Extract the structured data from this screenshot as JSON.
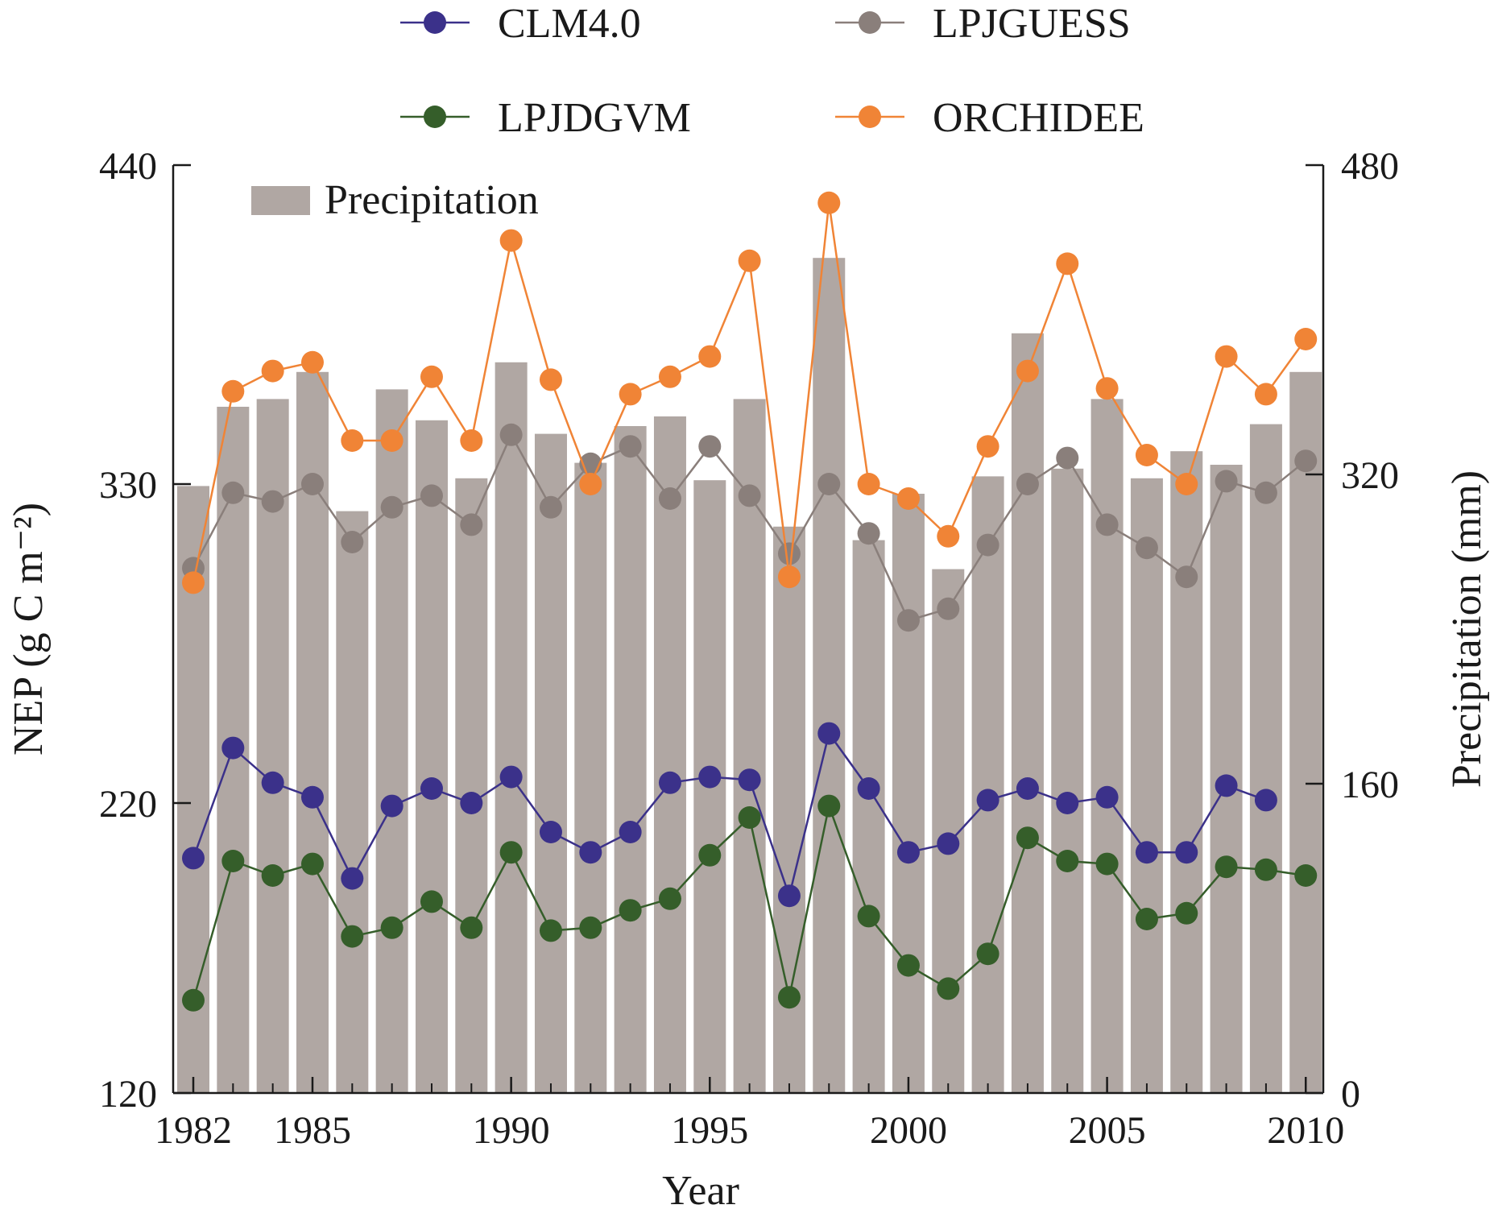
{
  "chart_data": {
    "type": "bar+line",
    "x_label": "Year",
    "y_left_label": "NEP (g C m⁻²)",
    "y_right_label": "Precipitation (mm)",
    "y_left_range": [
      120,
      440
    ],
    "y_right_range": [
      0,
      480
    ],
    "y_left_ticks": [
      120,
      220,
      330,
      440
    ],
    "y_right_ticks": [
      0,
      160,
      320,
      480
    ],
    "x_ticks": [
      1982,
      1985,
      1990,
      1995,
      2000,
      2005,
      2010
    ],
    "years": [
      1982,
      1983,
      1984,
      1985,
      1986,
      1987,
      1988,
      1989,
      1990,
      1991,
      1992,
      1993,
      1994,
      1995,
      1996,
      1997,
      1998,
      1999,
      2000,
      2001,
      2002,
      2003,
      2004,
      2005,
      2006,
      2007,
      2008,
      2009,
      2010
    ],
    "bars": {
      "name": "Precipitation",
      "axis": "right",
      "color": "#b0a7a3",
      "values": [
        314,
        355,
        359,
        373,
        301,
        364,
        348,
        318,
        378,
        341,
        326,
        345,
        350,
        317,
        359,
        293,
        432,
        286,
        310,
        271,
        319,
        393,
        323,
        359,
        318,
        332,
        325,
        346,
        373
      ]
    },
    "series": [
      {
        "name": "CLM4.0",
        "color": "#3b318a",
        "values": [
          201,
          239,
          227,
          222,
          194,
          219,
          225,
          220,
          229,
          210,
          203,
          210,
          227,
          229,
          228,
          188,
          244,
          225,
          203,
          206,
          221,
          225,
          220,
          222,
          203,
          203,
          226,
          221,
          null
        ]
      },
      {
        "name": "LPJGUESS",
        "color": "#8a7f7b",
        "values": [
          301,
          327,
          324,
          330,
          310,
          322,
          326,
          316,
          347,
          322,
          337,
          343,
          325,
          343,
          326,
          306,
          330,
          313,
          283,
          287,
          309,
          330,
          339,
          316,
          308,
          298,
          331,
          327,
          338
        ]
      },
      {
        "name": "LPJDGVM",
        "color": "#355e2a",
        "values": [
          152,
          200,
          195,
          199,
          174,
          177,
          186,
          177,
          203,
          176,
          177,
          183,
          187,
          202,
          215,
          153,
          219,
          181,
          164,
          156,
          168,
          208,
          200,
          199,
          180,
          182,
          198,
          197,
          195
        ]
      },
      {
        "name": "ORCHIDEE",
        "color": "#f08436",
        "values": [
          296,
          362,
          369,
          372,
          345,
          345,
          367,
          345,
          414,
          366,
          330,
          361,
          367,
          374,
          407,
          298,
          427,
          330,
          325,
          312,
          343,
          369,
          406,
          363,
          340,
          330,
          374,
          361,
          380
        ]
      }
    ],
    "legend_order": [
      "CLM4.0",
      "LPJGUESS",
      "LPJDGVM",
      "ORCHIDEE"
    ],
    "inset_legend": "Precipitation"
  }
}
